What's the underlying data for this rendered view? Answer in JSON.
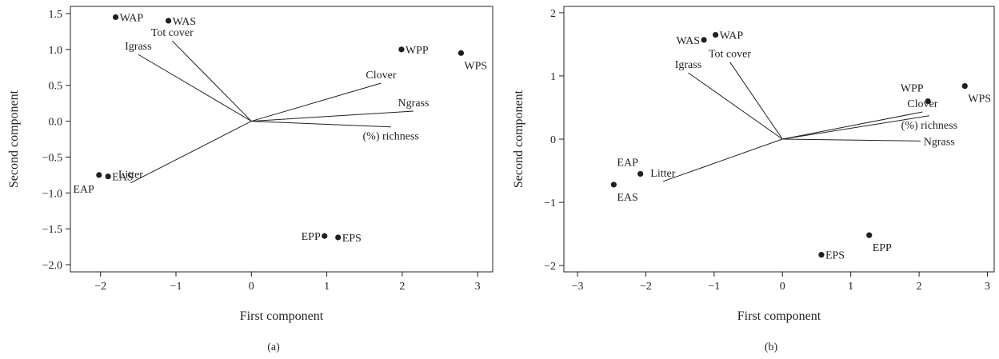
{
  "chart_data": [
    {
      "type": "scatter",
      "panel_label": "(a)",
      "xlabel": "First component",
      "ylabel": "Second component",
      "xlim": [
        -2.4,
        3.2
      ],
      "ylim": [
        -2.1,
        1.6
      ],
      "xticks": [
        -2,
        -1,
        0,
        1,
        2,
        3
      ],
      "yticks": [
        -2.0,
        -1.5,
        -1.0,
        -0.5,
        0.0,
        0.5,
        1.0,
        1.5
      ],
      "ytick_labels": [
        "−2.0",
        "−1.5",
        "−1.0",
        "−0.5",
        "0.0",
        "0.5",
        "1.0",
        "1.5"
      ],
      "xtick_labels": [
        "−2",
        "−1",
        "0",
        "1",
        "2",
        "3"
      ],
      "points": [
        {
          "label": "WAP",
          "x": -1.8,
          "y": 1.45,
          "anchor": "right"
        },
        {
          "label": "WAS",
          "x": -1.1,
          "y": 1.4,
          "anchor": "right"
        },
        {
          "label": "WPP",
          "x": 1.99,
          "y": 1.0,
          "anchor": "right"
        },
        {
          "label": "WPS",
          "x": 2.78,
          "y": 0.95,
          "anchor": "below"
        },
        {
          "label": "EAP",
          "x": -2.02,
          "y": -0.75,
          "anchor": "below-left"
        },
        {
          "label": "EAS",
          "x": -1.9,
          "y": -0.77,
          "anchor": "right"
        },
        {
          "label": "EPP",
          "x": 0.97,
          "y": -1.6,
          "anchor": "left"
        },
        {
          "label": "EPS",
          "x": 1.15,
          "y": -1.62,
          "anchor": "right"
        }
      ],
      "vectors": [
        {
          "label": "Tot cover",
          "x": -1.05,
          "y": 1.12,
          "label_pos": "above"
        },
        {
          "label": "Igrass",
          "x": -1.5,
          "y": 0.93,
          "label_pos": "above"
        },
        {
          "label": "Clover",
          "x": 1.72,
          "y": 0.53,
          "label_pos": "above"
        },
        {
          "label": "Ngrass",
          "x": 2.15,
          "y": 0.14,
          "label_pos": "above"
        },
        {
          "label": "(%) richness",
          "x": 1.85,
          "y": -0.08,
          "label_pos": "below"
        },
        {
          "label": "Litter",
          "x": -1.6,
          "y": -0.86,
          "label_pos": "above"
        }
      ]
    },
    {
      "type": "scatter",
      "panel_label": "(b)",
      "xlabel": "First component",
      "ylabel": "Second component",
      "xlim": [
        -3.2,
        3.1
      ],
      "ylim": [
        -2.1,
        2.1
      ],
      "xticks": [
        -3,
        -2,
        -1,
        0,
        1,
        2,
        3
      ],
      "yticks": [
        -2,
        -1,
        0,
        1,
        2
      ],
      "ytick_labels": [
        "−2",
        "−1",
        "0",
        "1",
        "2"
      ],
      "xtick_labels": [
        "−3",
        "−2",
        "−1",
        "0",
        "1",
        "2",
        "3"
      ],
      "points": [
        {
          "label": "WAS",
          "x": -1.15,
          "y": 1.57,
          "anchor": "left"
        },
        {
          "label": "WAP",
          "x": -0.98,
          "y": 1.65,
          "anchor": "right"
        },
        {
          "label": "WPP",
          "x": 2.13,
          "y": 0.6,
          "anchor": "above"
        },
        {
          "label": "WPS",
          "x": 2.67,
          "y": 0.84,
          "anchor": "below"
        },
        {
          "label": "EAP",
          "x": -2.08,
          "y": -0.55,
          "anchor": "above-left"
        },
        {
          "label": "EAS",
          "x": -2.47,
          "y": -0.72,
          "anchor": "below"
        },
        {
          "label": "EPP",
          "x": 1.27,
          "y": -1.52,
          "anchor": "below-right"
        },
        {
          "label": "EPS",
          "x": 0.57,
          "y": -1.83,
          "anchor": "right"
        }
      ],
      "vectors": [
        {
          "label": "Tot cover",
          "x": -0.77,
          "y": 1.22,
          "label_pos": "above"
        },
        {
          "label": "Igrass",
          "x": -1.38,
          "y": 1.05,
          "label_pos": "above"
        },
        {
          "label": "Clover",
          "x": 2.05,
          "y": 0.43,
          "label_pos": "above"
        },
        {
          "label": "(%) richness",
          "x": 2.15,
          "y": 0.37,
          "label_pos": "below"
        },
        {
          "label": "Ngrass",
          "x": 2.02,
          "y": -0.03,
          "label_pos": "right"
        },
        {
          "label": "Litter",
          "x": -1.75,
          "y": -0.67,
          "label_pos": "above"
        }
      ]
    }
  ]
}
